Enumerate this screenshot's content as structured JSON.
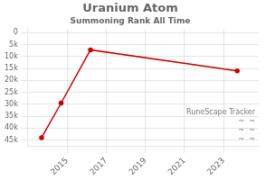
{
  "chart_data": {
    "type": "line",
    "title": "Uranium Atom",
    "subtitle": "Summoning Rank All Time",
    "annotations": [
      "RuneScape Tracker",
      "~  ~",
      "~  ~",
      "~  ~"
    ],
    "x": [
      2013.7,
      2014.7,
      2016.2,
      2023.7
    ],
    "values": [
      44000,
      29500,
      7200,
      16000
    ],
    "color": "#cc0000",
    "marker": "circle",
    "xlim": [
      2013.0,
      2024.8
    ],
    "xticks": [
      2015,
      2017,
      2019,
      2021,
      2023
    ],
    "ylim": [
      47500,
      -1500
    ],
    "yticks": [
      0,
      {
        "value": 5000,
        "label": "5k"
      },
      {
        "value": 10000,
        "label": "10k"
      },
      {
        "value": 15000,
        "label": "15k"
      },
      {
        "value": 20000,
        "label": "20k"
      },
      {
        "value": 25000,
        "label": "25k"
      },
      {
        "value": 30000,
        "label": "30k"
      },
      {
        "value": 35000,
        "label": "35k"
      },
      {
        "value": 40000,
        "label": "40k"
      },
      {
        "value": 45000,
        "label": "45k"
      }
    ],
    "grid": true
  }
}
